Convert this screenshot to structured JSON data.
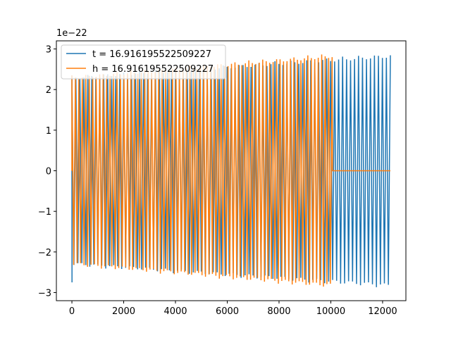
{
  "chart_data": {
    "type": "line",
    "title": "",
    "xlabel": "",
    "ylabel": "",
    "offset_text": "1e−22",
    "xlim": [
      -600,
      12900
    ],
    "ylim": [
      -3.2e-22,
      3.2e-22
    ],
    "x_ticks": [
      0,
      2000,
      4000,
      6000,
      8000,
      10000,
      12000
    ],
    "x_tick_labels": [
      "0",
      "2000",
      "4000",
      "6000",
      "8000",
      "10000",
      "12000"
    ],
    "y_ticks": [
      -3e-22,
      -2e-22,
      -1e-22,
      0,
      1e-22,
      2e-22,
      3e-22
    ],
    "y_tick_labels": [
      "−3",
      "−2",
      "−1",
      "0",
      "1",
      "2",
      "3"
    ],
    "grid": false,
    "legend_position": "upper left",
    "series": [
      {
        "name": "t = 16.916195522509227",
        "color": "#1f77b4",
        "shape": "oscillation",
        "x_start": 0,
        "x_end": 12300,
        "amplitude_start": 2.35e-22,
        "amplitude_end": 2.9e-22,
        "initial_spike_min": -2.75e-22,
        "oscillation_count": 160
      },
      {
        "name": "h = 16.916195522509227",
        "color": "#ff7f0e",
        "shape": "oscillation_then_flat",
        "x_start": 0,
        "x_end": 10050,
        "amplitude_start": 2.35e-22,
        "amplitude_end": 2.9e-22,
        "flat_x_end": 12300,
        "flat_value": 0,
        "oscillation_count": 150
      }
    ]
  }
}
